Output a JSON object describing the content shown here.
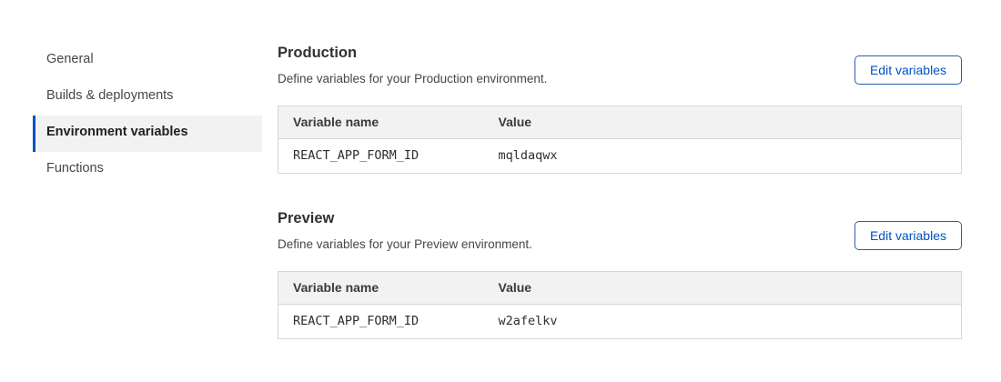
{
  "sidebar": {
    "items": [
      {
        "label": "General",
        "selected": false
      },
      {
        "label": "Builds & deployments",
        "selected": false
      },
      {
        "label": "Environment variables",
        "selected": true
      },
      {
        "label": "Functions",
        "selected": false
      }
    ]
  },
  "sections": [
    {
      "title": "Production",
      "description": "Define variables for your Production environment.",
      "button_label": "Edit variables",
      "table": {
        "columns": [
          "Variable name",
          "Value"
        ],
        "rows": [
          {
            "name": "REACT_APP_FORM_ID",
            "value": "mqldaqwx"
          }
        ]
      }
    },
    {
      "title": "Preview",
      "description": "Define variables for your Preview environment.",
      "button_label": "Edit variables",
      "table": {
        "columns": [
          "Variable name",
          "Value"
        ],
        "rows": [
          {
            "name": "REACT_APP_FORM_ID",
            "value": "w2afelkv"
          }
        ]
      }
    }
  ],
  "colors": {
    "accent_blue": "#0051c3",
    "selected_item_bg": "#f2f2f2",
    "table_header_bg": "#f2f2f2",
    "table_border": "#d6d6d6"
  }
}
